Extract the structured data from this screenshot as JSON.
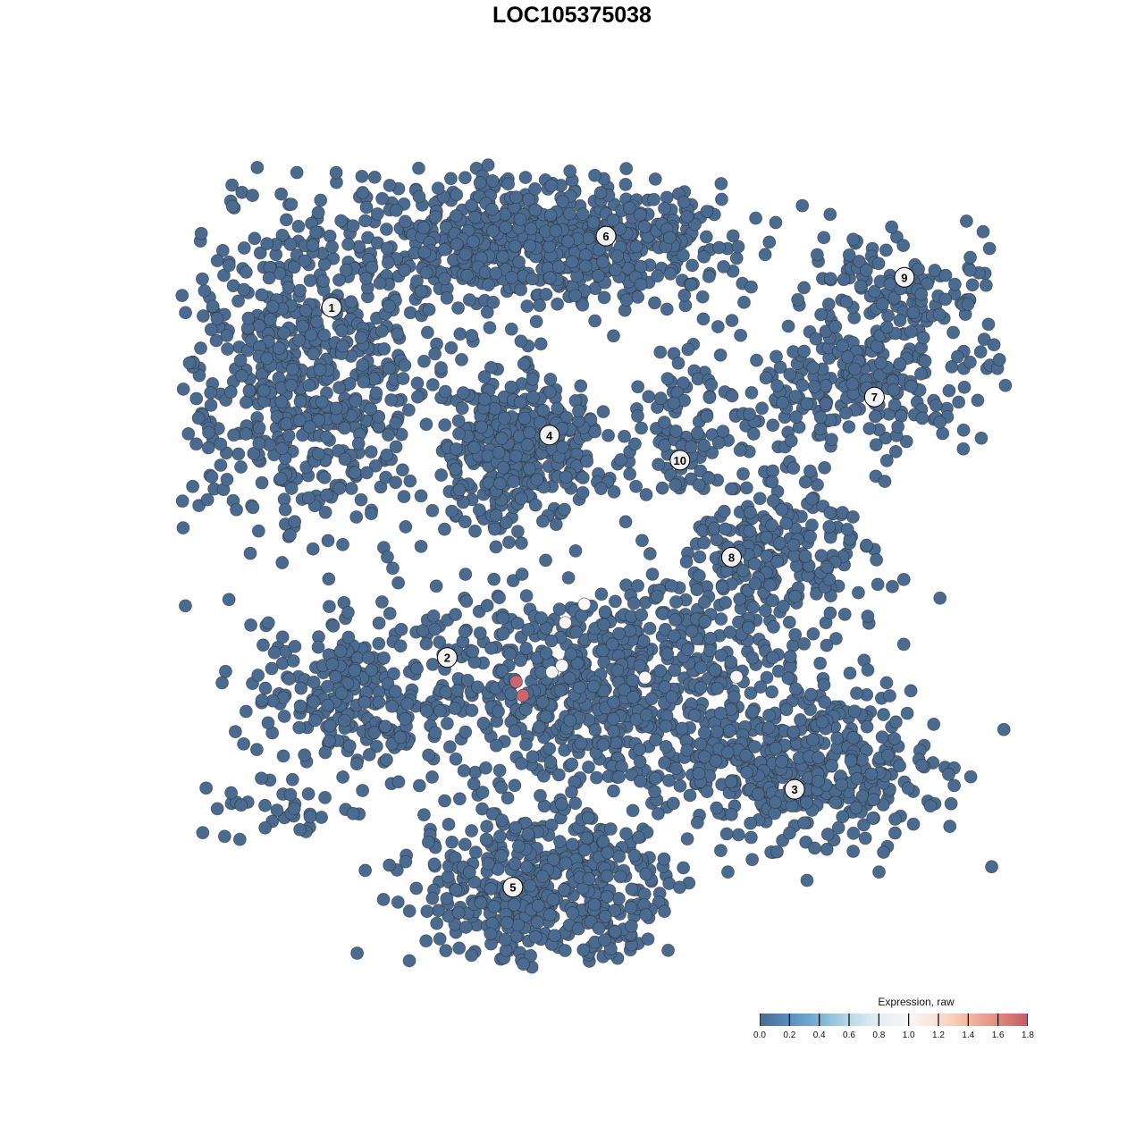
{
  "chart_data": {
    "type": "scatter",
    "title": "LOC105375038",
    "xlabel": "",
    "ylabel": "",
    "axes_visible": false,
    "grid": false,
    "xlim": [
      -50,
      50
    ],
    "ylim": [
      -50,
      50
    ],
    "point_color_default": "#4a6a8f",
    "colorbar": {
      "title": "Expression, raw",
      "range": [
        0.0,
        1.8
      ],
      "ticks": [
        "0.0",
        "0.2",
        "0.4",
        "0.6",
        "0.8",
        "1.0",
        "1.2",
        "1.4",
        "1.6",
        "1.8"
      ],
      "colors": [
        "#4a6a8f",
        "#5b8fc0",
        "#7bb2d4",
        "#b9d8e8",
        "#e4eef5",
        "#f7f7f7",
        "#fbe0d4",
        "#f5b89f",
        "#e28a7f",
        "#c45a68"
      ],
      "placement": "bottom-right"
    },
    "clusters": [
      {
        "label": "1",
        "center": [
          -31.6,
          32.4
        ]
      },
      {
        "label": "2",
        "center": [
          -17.7,
          -10.9
        ]
      },
      {
        "label": "3",
        "center": [
          24.1,
          -27.2
        ]
      },
      {
        "label": "4",
        "center": [
          -5.4,
          16.6
        ]
      },
      {
        "label": "5",
        "center": [
          -9.8,
          -39.3
        ]
      },
      {
        "label": "6",
        "center": [
          1.4,
          41.2
        ]
      },
      {
        "label": "7",
        "center": [
          33.7,
          21.3
        ]
      },
      {
        "label": "8",
        "center": [
          16.5,
          1.5
        ]
      },
      {
        "label": "9",
        "center": [
          37.3,
          36.1
        ]
      },
      {
        "label": "10",
        "center": [
          10.3,
          13.5
        ]
      }
    ],
    "point_groups": [
      {
        "mean": [
          -35,
          24
        ],
        "sd": [
          7.5,
          10
        ],
        "n": 600,
        "value": 0
      },
      {
        "mean": [
          -7,
          40.5
        ],
        "sd": [
          12,
          4
        ],
        "n": 700,
        "value": 0
      },
      {
        "mean": [
          -9.1,
          15
        ],
        "sd": [
          5,
          4.4
        ],
        "n": 400,
        "value": 0
      },
      {
        "mean": [
          10.8,
          17.4
        ],
        "sd": [
          3.2,
          3.8
        ],
        "n": 80,
        "value": 0
      },
      {
        "mean": [
          31.7,
          22.8
        ],
        "sd": [
          8.6,
          3.9
        ],
        "n": 250,
        "value": 0
      },
      {
        "mean": [
          36,
          35
        ],
        "sd": [
          5.4,
          3.3
        ],
        "n": 120,
        "value": 0
      },
      {
        "mean": [
          22,
          1.9
        ],
        "sd": [
          6.5,
          5.5
        ],
        "n": 250,
        "value": 0
      },
      {
        "mean": [
          -28.5,
          -15.8
        ],
        "sd": [
          6.5,
          5
        ],
        "n": 250,
        "value": 0
      },
      {
        "mean": [
          1.6,
          -14.7
        ],
        "sd": [
          10.8,
          6.6
        ],
        "n": 700,
        "value": 0
      },
      {
        "mean": [
          25.3,
          -24.6
        ],
        "sd": [
          7.5,
          5
        ],
        "n": 400,
        "value": 0
      },
      {
        "mean": [
          -5.9,
          -40.1
        ],
        "sd": [
          8,
          5
        ],
        "n": 500,
        "value": 0
      },
      {
        "mean": [
          -39.2,
          -30.2
        ],
        "sd": [
          4,
          2
        ],
        "n": 30,
        "value": 0
      }
    ],
    "highlighted_points": [
      {
        "x": -3.5,
        "y": -6.6,
        "value": 1.0
      },
      {
        "x": -5.1,
        "y": -12.7,
        "value": 1.0
      },
      {
        "x": -3.9,
        "y": -11.9,
        "value": 1.0
      },
      {
        "x": -1.2,
        "y": -4.3,
        "value": 1.0
      },
      {
        "x": 6.1,
        "y": -13.4,
        "value": 1.0
      },
      {
        "x": 17.1,
        "y": -13.3,
        "value": 1.0
      },
      {
        "x": -9.4,
        "y": -13.9,
        "value": 1.75
      },
      {
        "x": -8.6,
        "y": -15.6,
        "value": 1.75
      }
    ]
  }
}
